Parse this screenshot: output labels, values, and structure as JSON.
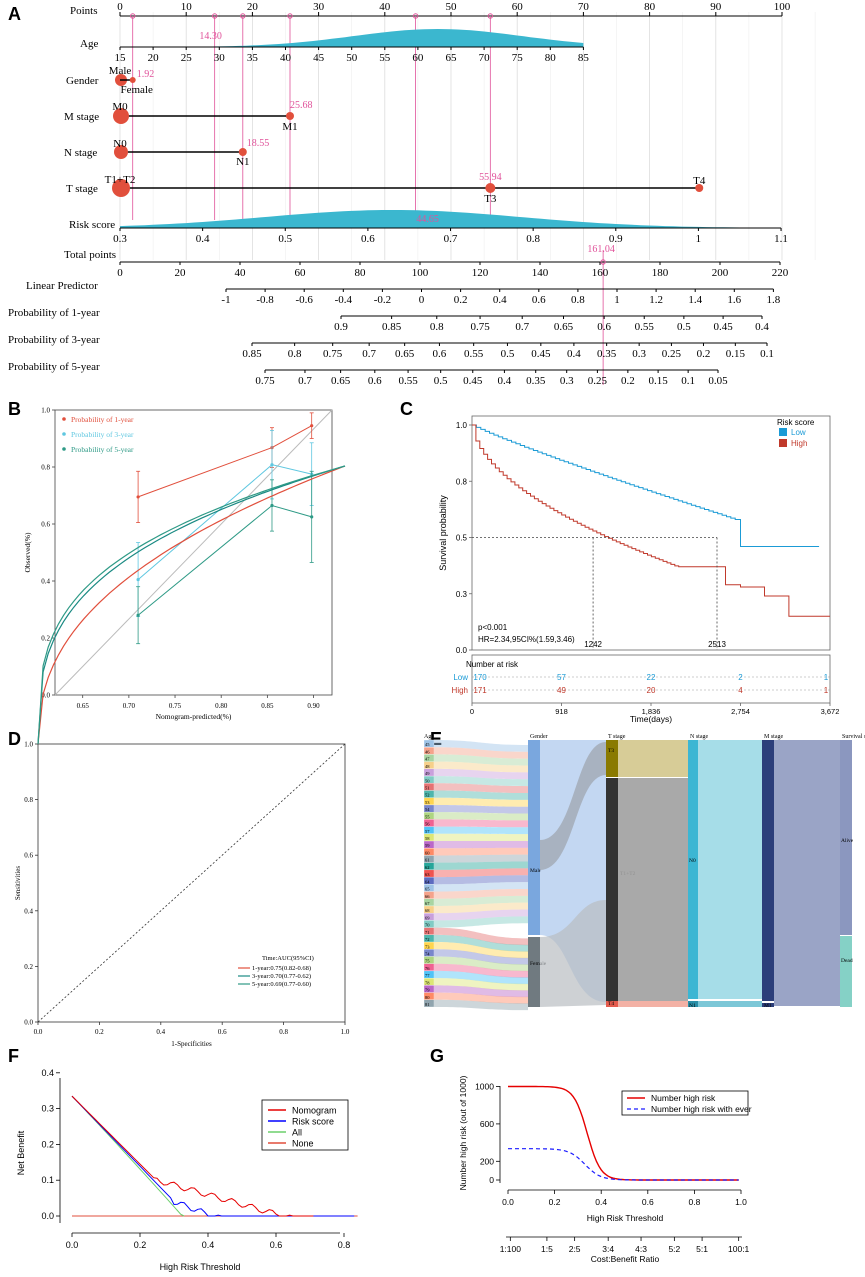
{
  "panel_letters": [
    "A",
    "B",
    "C",
    "D",
    "E",
    "F",
    "G"
  ],
  "colors": {
    "teal": "#3bb7cf",
    "red": "#e14f3c",
    "pink": "#e0529a",
    "grey_line": "#bbbbbb",
    "blue": "#1b9bd6",
    "high": "#c0392b",
    "green": "#2e9a86",
    "lightblue": "#5fc7e0"
  },
  "chart_data": [
    {
      "panel": "A",
      "type": "nomogram",
      "rows": [
        {
          "label": "Points",
          "ticks": [
            "0",
            "10",
            "20",
            "30",
            "40",
            "50",
            "60",
            "70",
            "80",
            "90",
            "100"
          ]
        },
        {
          "label": "Age",
          "ticks": [
            "15",
            "20",
            "25",
            "30",
            "35",
            "40",
            "45",
            "50",
            "55",
            "60",
            "65",
            "70",
            "75",
            "80",
            "85"
          ]
        },
        {
          "label": "Gender",
          "levels": [
            "Male",
            "Female"
          ]
        },
        {
          "label": "M stage",
          "levels": [
            "M0",
            "M1"
          ]
        },
        {
          "label": "N stage",
          "levels": [
            "N0",
            "N1"
          ]
        },
        {
          "label": "T stage",
          "levels": [
            "T1+T2",
            "T3",
            "T4"
          ]
        },
        {
          "label": "Risk score",
          "ticks": [
            "0.3",
            "0.4",
            "0.5",
            "0.6",
            "0.7",
            "0.8",
            "0.9",
            "1",
            "1.1"
          ]
        },
        {
          "label": "Total points",
          "ticks": [
            "0",
            "20",
            "40",
            "60",
            "80",
            "100",
            "120",
            "140",
            "160",
            "180",
            "200",
            "220"
          ]
        },
        {
          "label": "Linear Predictor",
          "ticks": [
            "-1",
            "-0.8",
            "-0.6",
            "-0.4",
            "-0.2",
            "0",
            "0.2",
            "0.4",
            "0.6",
            "0.8",
            "1",
            "1.2",
            "1.4",
            "1.6",
            "1.8"
          ]
        },
        {
          "label": "Probability of 1-year",
          "ticks": [
            "0.9",
            "0.85",
            "0.8",
            "0.75",
            "0.7",
            "0.65",
            "0.6",
            "0.55",
            "0.5",
            "0.45",
            "0.4"
          ]
        },
        {
          "label": "Probability of 3-year",
          "ticks": [
            "0.85",
            "0.8",
            "0.75",
            "0.7",
            "0.65",
            "0.6",
            "0.55",
            "0.5",
            "0.45",
            "0.4",
            "0.35",
            "0.3",
            "0.25",
            "0.2",
            "0.15",
            "0.1"
          ]
        },
        {
          "label": "Probability of 5-year",
          "ticks": [
            "0.75",
            "0.7",
            "0.65",
            "0.6",
            "0.55",
            "0.5",
            "0.45",
            "0.4",
            "0.35",
            "0.3",
            "0.25",
            "0.2",
            "0.15",
            "0.1",
            "0.05"
          ]
        }
      ],
      "point_labels": {
        "age": "14.30",
        "gender": "1.92",
        "m_stage": "25.68",
        "n_stage": "18.55",
        "t_stage": "55.94",
        "risk": "44.65",
        "total": "161.04"
      }
    },
    {
      "panel": "B",
      "type": "line",
      "xlabel": "Nomogram-predicted(%)",
      "ylabel": "Observed(%)",
      "xlim": [
        0.62,
        0.92
      ],
      "ylim": [
        0,
        1
      ],
      "x_ticks": [
        "0.65",
        "0.70",
        "0.75",
        "0.80",
        "0.85",
        "0.90"
      ],
      "y_ticks": [
        "0.0",
        "0.2",
        "0.4",
        "0.6",
        "0.8",
        "1.0"
      ],
      "series": [
        {
          "name": "Probability of 1-year",
          "x": [
            0.71,
            0.855,
            0.898
          ],
          "y": [
            0.695,
            0.868,
            0.945
          ]
        },
        {
          "name": "Probability of 3-year",
          "x": [
            0.71,
            0.855,
            0.898
          ],
          "y": [
            0.405,
            0.808,
            0.775
          ]
        },
        {
          "name": "Probability of 5-year",
          "x": [
            0.71,
            0.855,
            0.898
          ],
          "y": [
            0.28,
            0.665,
            0.625
          ]
        }
      ]
    },
    {
      "panel": "C",
      "type": "line",
      "xlabel": "Time(days)",
      "ylabel": "Survival probability",
      "legend_title": "Risk score",
      "legend": [
        "Low",
        "High"
      ],
      "pvalue": "p<0.001",
      "hr": "HR=2.34,95CI%(1.59,3.46)",
      "median_labels": [
        "1242",
        "2513"
      ],
      "y_ticks": [
        "1.0",
        "0.8",
        "0.5",
        "0.3",
        "0.0"
      ],
      "x_ticks": [
        "0",
        "918",
        "1,836",
        "2,754",
        "3,672"
      ],
      "risk_table_title": "Number at risk",
      "risk_table": [
        {
          "group": "Low",
          "values": [
            "170",
            "57",
            "22",
            "2",
            "1"
          ]
        },
        {
          "group": "High",
          "values": [
            "171",
            "49",
            "20",
            "4",
            "1"
          ]
        }
      ]
    },
    {
      "panel": "D",
      "type": "line",
      "xlabel": "1-Specificities",
      "ylabel": "Sensitivities",
      "x_ticks": [
        "0.0",
        "0.2",
        "0.4",
        "0.6",
        "0.8",
        "1.0"
      ],
      "y_ticks": [
        "0.0",
        "0.2",
        "0.4",
        "0.6",
        "0.8",
        "1.0"
      ],
      "legend_title": "Time:AUC(95%CI)",
      "legend": [
        "1-year:0.75(0.82-0.68)",
        "3-year:0.70(0.77-0.62)",
        "5-year:0.69(0.77-0.60)"
      ]
    },
    {
      "panel": "E",
      "type": "sankey",
      "axes": [
        "Age",
        "Gender",
        "T stage",
        "N stage",
        "M stage",
        "Survival status"
      ],
      "age_labels": [
        "45",
        "46",
        "47",
        "48",
        "49",
        "50",
        "51",
        "52",
        "53",
        "54",
        "55",
        "56",
        "57",
        "58",
        "59",
        "60",
        "61",
        "62",
        "63",
        "64",
        "65",
        "66",
        "67",
        "68",
        "69",
        "70",
        "71",
        "72",
        "73",
        "74",
        "75",
        "76",
        "77",
        "78",
        "79",
        "80",
        "81"
      ],
      "gender": [
        "Male",
        "Female"
      ],
      "t_stage": [
        "T3",
        "T1+T2",
        "T4"
      ],
      "n_stage": [
        "N0",
        "N1"
      ],
      "m_stage": [
        "M0",
        "M1"
      ],
      "survival": [
        "Alive",
        "Dead"
      ]
    },
    {
      "panel": "F",
      "type": "line",
      "xlabel": "High Risk Threshold",
      "ylabel": "Net Benefit",
      "x_ticks": [
        "0.0",
        "0.2",
        "0.4",
        "0.6",
        "0.8"
      ],
      "y_ticks": [
        "0.0",
        "0.1",
        "0.2",
        "0.3",
        "0.4"
      ],
      "legend": [
        "Nomogram",
        "Risk score",
        "All",
        "None"
      ]
    },
    {
      "panel": "G",
      "type": "line",
      "xlabel": "High Risk Threshold",
      "ylabel": "Number high risk (out of 1000)",
      "x_ticks": [
        "0.0",
        "0.2",
        "0.4",
        "0.6",
        "0.8",
        "1.0"
      ],
      "y_ticks": [
        "0",
        "200",
        "600",
        "1000"
      ],
      "secondary_xlabel": "Cost:Benefit Ratio",
      "secondary_ticks": [
        "1:100",
        "1:5",
        "2:5",
        "3:4",
        "4:3",
        "5:2",
        "5:1",
        "100:1"
      ],
      "legend": [
        "Number high risk",
        "Number high risk with ever"
      ]
    }
  ]
}
